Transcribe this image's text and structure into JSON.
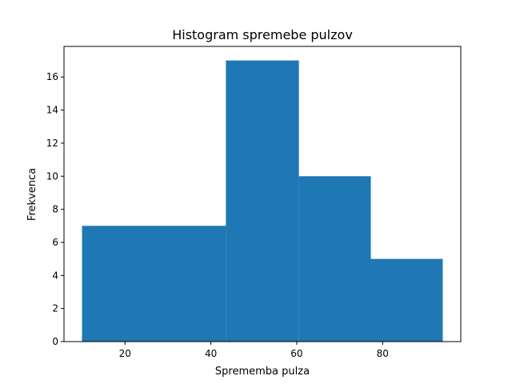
{
  "chart_data": {
    "type": "bar",
    "title": "Histogram spremebe pulzov",
    "xlabel": "Sprememba pulza",
    "ylabel": "Frekvenca",
    "bins": [
      {
        "start": 10,
        "end": 43.5,
        "count": 7
      },
      {
        "start": 43.5,
        "end": 60.5,
        "count": 17
      },
      {
        "start": 60.5,
        "end": 77.25,
        "count": 10
      },
      {
        "start": 77.25,
        "end": 94,
        "count": 5
      }
    ],
    "xlim": [
      5.8,
      98.2
    ],
    "ylim": [
      0,
      17.85
    ],
    "xticks": [
      20,
      40,
      60,
      80
    ],
    "yticks": [
      0,
      2,
      4,
      6,
      8,
      10,
      12,
      14,
      16
    ],
    "grid": false,
    "legend": "none",
    "bar_color": "#1f77b4"
  }
}
